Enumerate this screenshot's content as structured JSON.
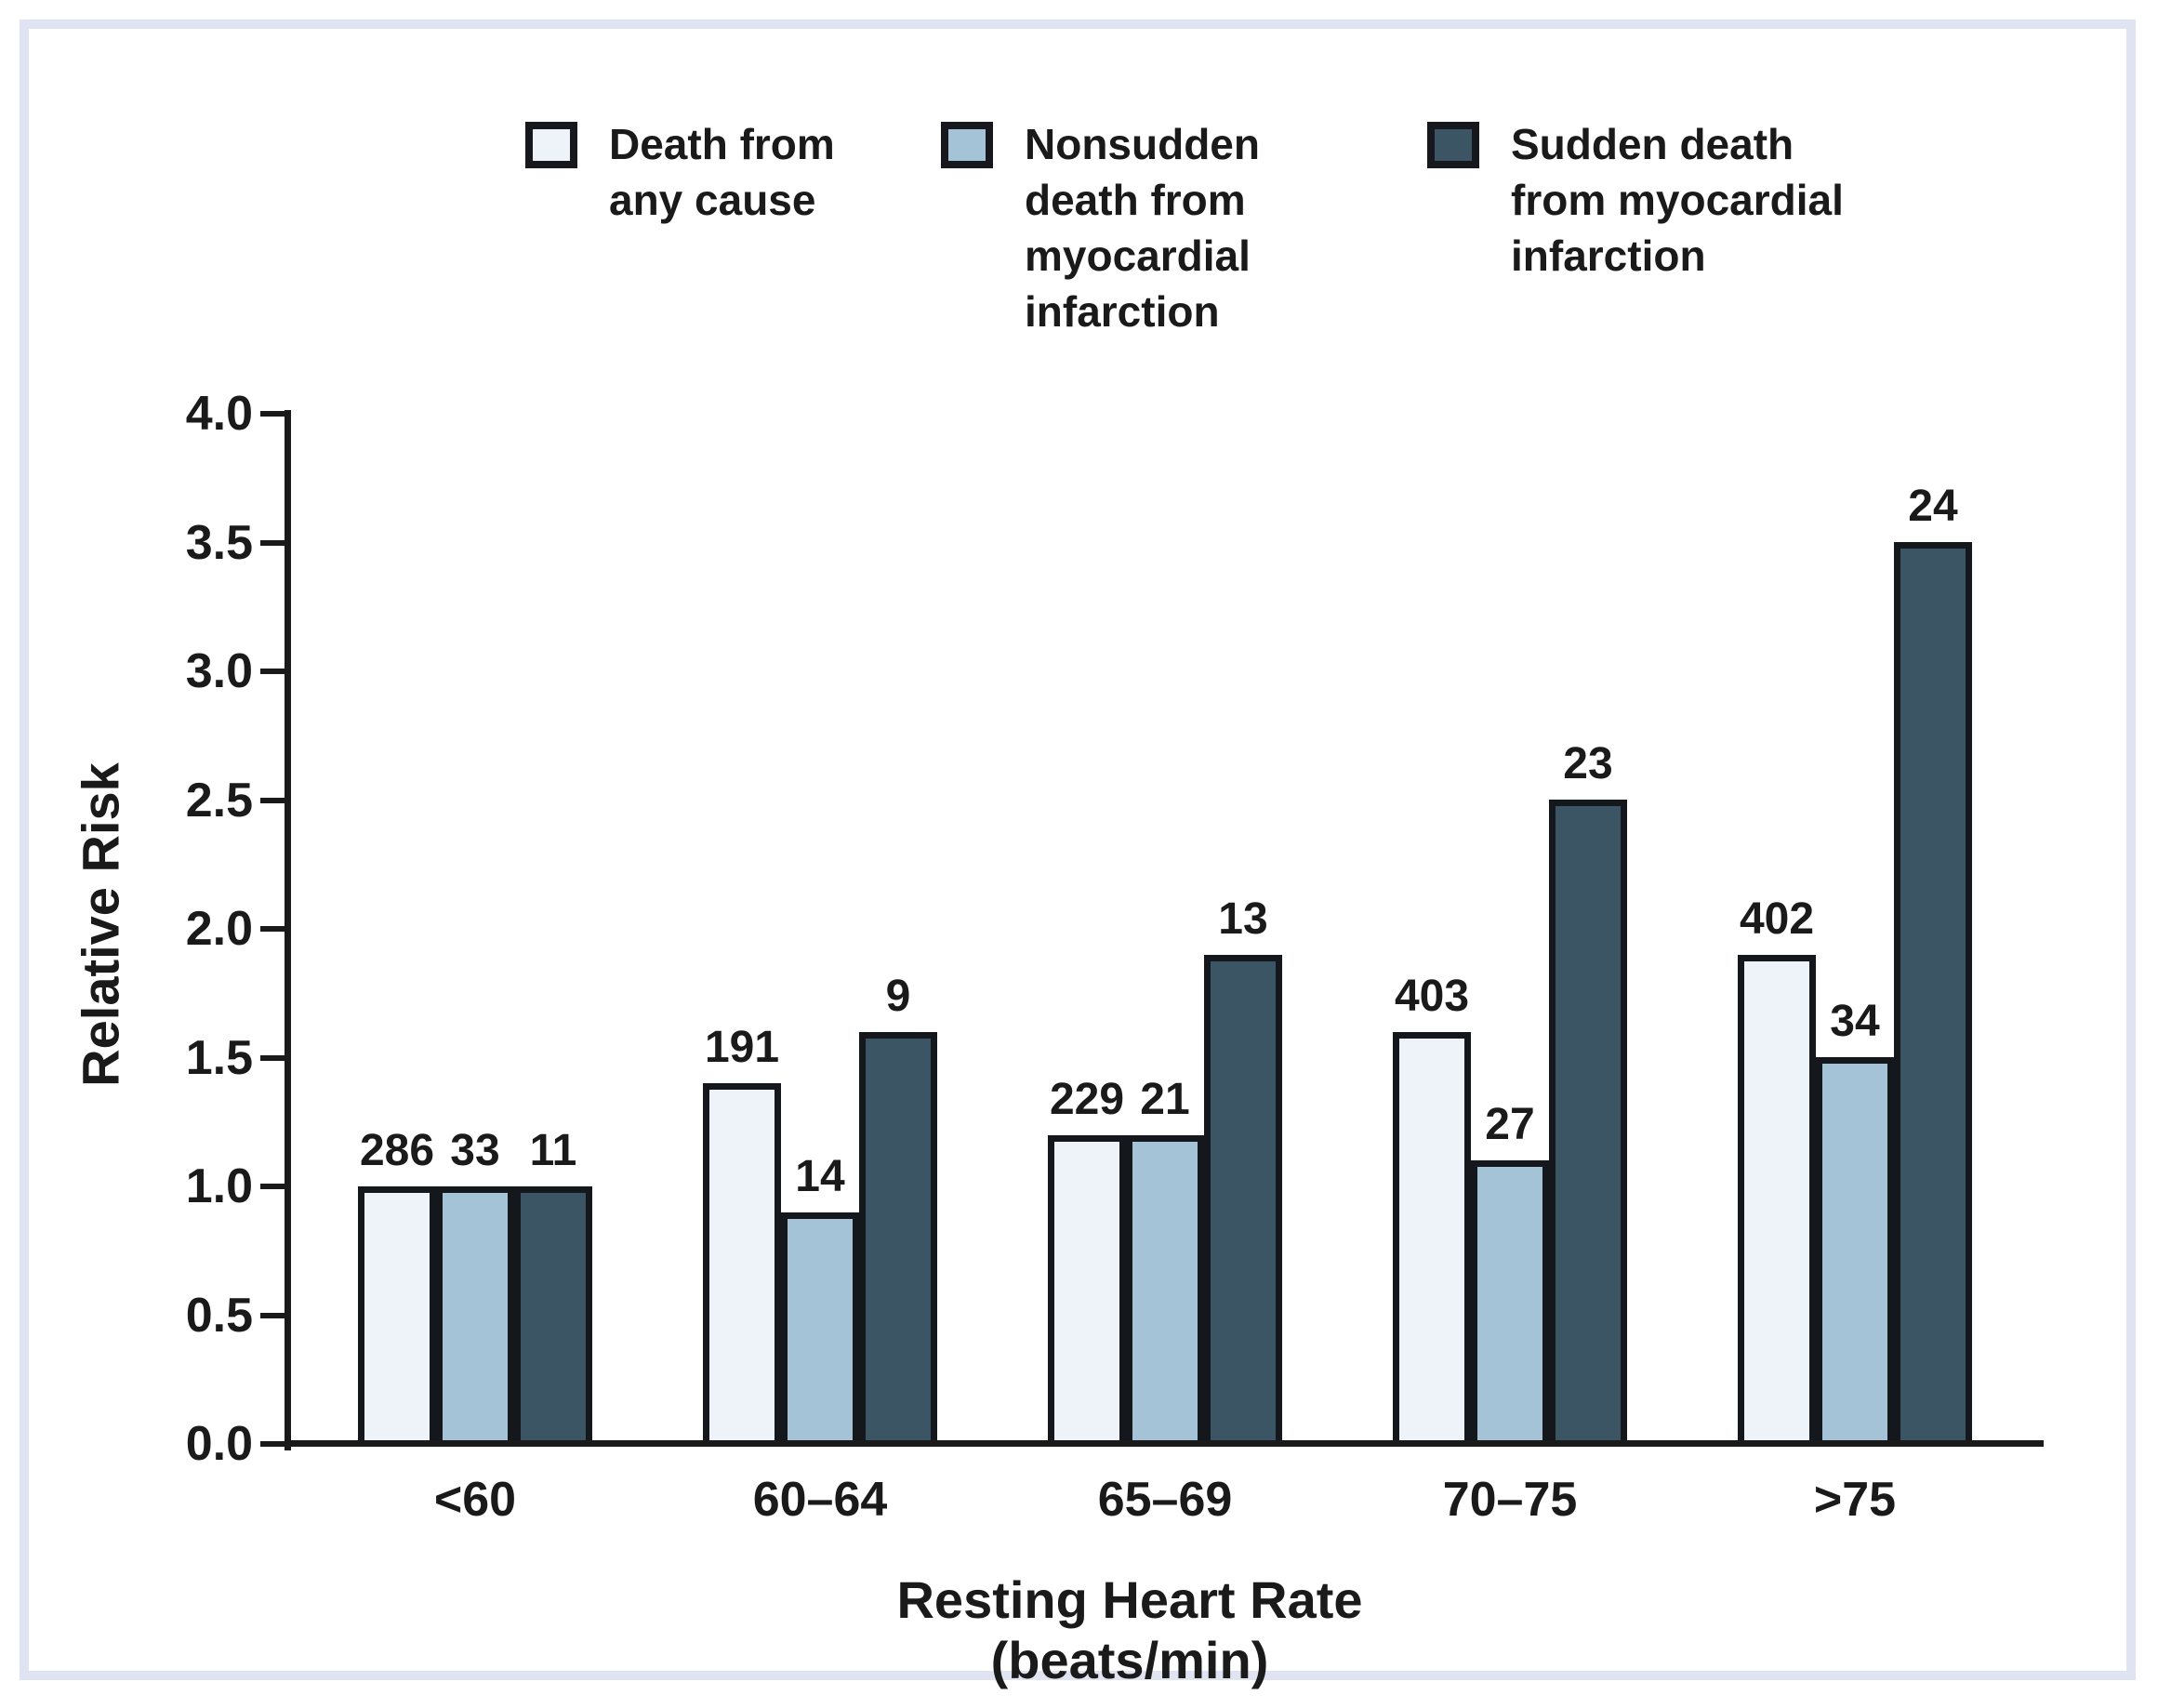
{
  "frame": {
    "border_color": "#dfe3f2",
    "background": "#ffffff"
  },
  "chart_data": {
    "type": "bar",
    "title": "",
    "xlabel": "Resting Heart Rate (beats/min)",
    "ylabel": "Relative Risk",
    "ylim": [
      0.0,
      4.0
    ],
    "yticks": [
      "0.0",
      "0.5",
      "1.0",
      "1.5",
      "2.0",
      "2.5",
      "3.0",
      "3.5",
      "4.0"
    ],
    "categories": [
      "<60",
      "60–64",
      "65–69",
      "70–75",
      ">75"
    ],
    "series": [
      {
        "name": "Death from\nany cause",
        "color": "#eef2f9",
        "values": [
          1.0,
          1.4,
          1.2,
          1.6,
          1.9
        ],
        "bar_labels": [
          "286",
          "191",
          "229",
          "403",
          "402"
        ]
      },
      {
        "name": "Nonsudden\ndeath from\nmyocardial\ninfarction",
        "color": "#a4c3d6",
        "values": [
          1.0,
          0.9,
          1.2,
          1.1,
          1.5
        ],
        "bar_labels": [
          "33",
          "14",
          "21",
          "27",
          "34"
        ]
      },
      {
        "name": "Sudden death\nfrom myocardial\ninfarction",
        "color": "#3b5565",
        "values": [
          1.0,
          1.6,
          1.9,
          2.5,
          3.5
        ],
        "bar_labels": [
          "11",
          "9",
          "13",
          "23",
          "24"
        ]
      }
    ],
    "legend_position": "top",
    "grid": false
  }
}
